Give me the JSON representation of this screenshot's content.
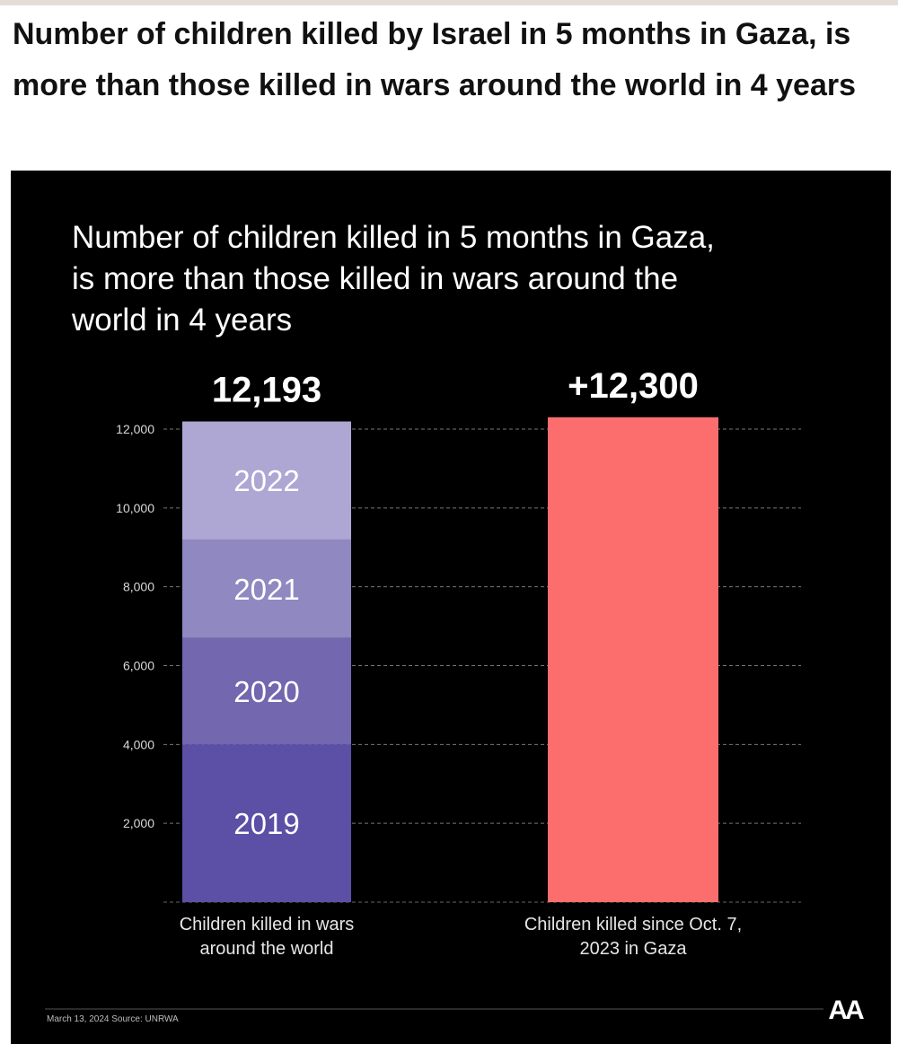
{
  "post": {
    "title": "Number of children killed by Israel in 5 months in Gaza, is more than those killed in wars around the world in 4 years"
  },
  "chart_data": {
    "type": "bar",
    "title_lines": [
      "Number of children killed in 5 months in Gaza,",
      "is more than those killed in wars around the",
      "world in 4 years"
    ],
    "ylim": [
      0,
      12000
    ],
    "yticks": [
      2000,
      4000,
      6000,
      8000,
      10000,
      12000
    ],
    "ytick_labels": [
      "2,000",
      "4,000",
      "6,000",
      "8,000",
      "10,000",
      "12,000"
    ],
    "grid": true,
    "bars": [
      {
        "category_lines": [
          "Children killed in wars",
          "around the world"
        ],
        "total_label": "12,193",
        "total": 12193,
        "stacked": true,
        "segments": [
          {
            "label": "2019",
            "value": 4000,
            "color": "#5b4fa6"
          },
          {
            "label": "2020",
            "value": 2700,
            "color": "#7367b0"
          },
          {
            "label": "2021",
            "value": 2500,
            "color": "#9088c1"
          },
          {
            "label": "2022",
            "value": 2993,
            "color": "#aea7d4"
          }
        ]
      },
      {
        "category_lines": [
          "Children killed since Oct. 7,",
          "2023 in Gaza"
        ],
        "total_label": "+12,300",
        "total": 12300,
        "stacked": false,
        "color": "#fc6e6e"
      }
    ],
    "footnote": "March 13, 2024 Source: UNRWA",
    "logo_text": "AA"
  }
}
